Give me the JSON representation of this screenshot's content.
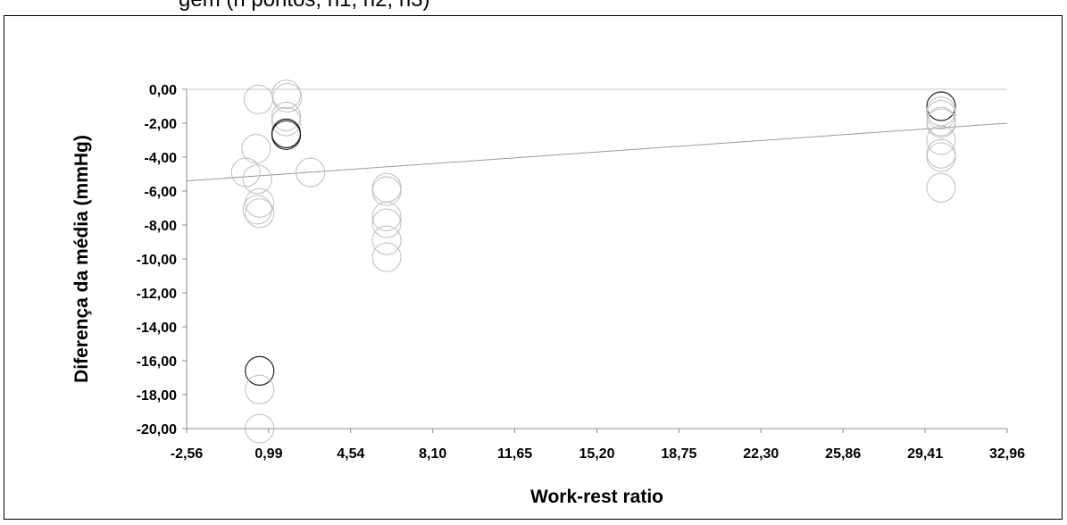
{
  "caption_fragment": "gem (n pontos, n1, n2, n3)",
  "chart_data": {
    "type": "scatter",
    "title": "",
    "xlabel": "Work-rest ratio",
    "ylabel": "Diferença da média (mmHg)",
    "xlim": [
      -2.56,
      32.96
    ],
    "ylim": [
      -20,
      0
    ],
    "x_ticks": [
      "-2,56",
      "0,99",
      "4,54",
      "8,10",
      "11,65",
      "15,20",
      "18,75",
      "22,30",
      "25,86",
      "29,41",
      "32,96"
    ],
    "y_ticks": [
      "0,00",
      "-2,00",
      "-4,00",
      "-6,00",
      "-8,00",
      "-10,00",
      "-12,00",
      "-14,00",
      "-16,00",
      "-18,00",
      "-20,00"
    ],
    "grid": false,
    "colors": {
      "marker_light": "#bdbdbd",
      "marker_dark": "#222222",
      "trendline": "#9a9a9a",
      "axis": "#8c8c8c"
    },
    "series": [
      {
        "points": [
          {
            "x": 0.55,
            "y": -0.6
          },
          {
            "x": 0.45,
            "y": -3.5
          },
          {
            "x": 0.0,
            "y": -4.9
          },
          {
            "x": 0.5,
            "y": -5.3
          },
          {
            "x": 0.6,
            "y": -6.7
          },
          {
            "x": 0.5,
            "y": -7.1
          },
          {
            "x": 0.6,
            "y": -7.3
          },
          {
            "x": 0.6,
            "y": -16.6,
            "dark": true
          },
          {
            "x": 0.6,
            "y": -17.7
          },
          {
            "x": 0.6,
            "y": -20.0
          },
          {
            "x": 1.75,
            "y": -0.3
          },
          {
            "x": 1.8,
            "y": -0.5
          },
          {
            "x": 1.75,
            "y": -1.6
          },
          {
            "x": 1.75,
            "y": -1.9
          },
          {
            "x": 1.75,
            "y": -2.6,
            "dark": true
          },
          {
            "x": 1.75,
            "y": -2.7,
            "dark": true
          },
          {
            "x": 2.8,
            "y": -4.9
          },
          {
            "x": 6.1,
            "y": -5.8
          },
          {
            "x": 6.1,
            "y": -6.0
          },
          {
            "x": 6.1,
            "y": -7.5
          },
          {
            "x": 6.1,
            "y": -7.9
          },
          {
            "x": 6.1,
            "y": -8.9
          },
          {
            "x": 6.1,
            "y": -9.9
          },
          {
            "x": 30.1,
            "y": -1.0,
            "dark": true
          },
          {
            "x": 30.1,
            "y": -1.3
          },
          {
            "x": 30.1,
            "y": -1.5
          },
          {
            "x": 30.1,
            "y": -1.9
          },
          {
            "x": 30.1,
            "y": -2.0
          },
          {
            "x": 30.1,
            "y": -3.0
          },
          {
            "x": 30.1,
            "y": -3.8
          },
          {
            "x": 30.1,
            "y": -4.0
          },
          {
            "x": 30.1,
            "y": -5.8
          }
        ]
      }
    ],
    "trendline": {
      "x": [
        -2.56,
        32.96
      ],
      "y": [
        -5.4,
        -2.0
      ]
    }
  }
}
